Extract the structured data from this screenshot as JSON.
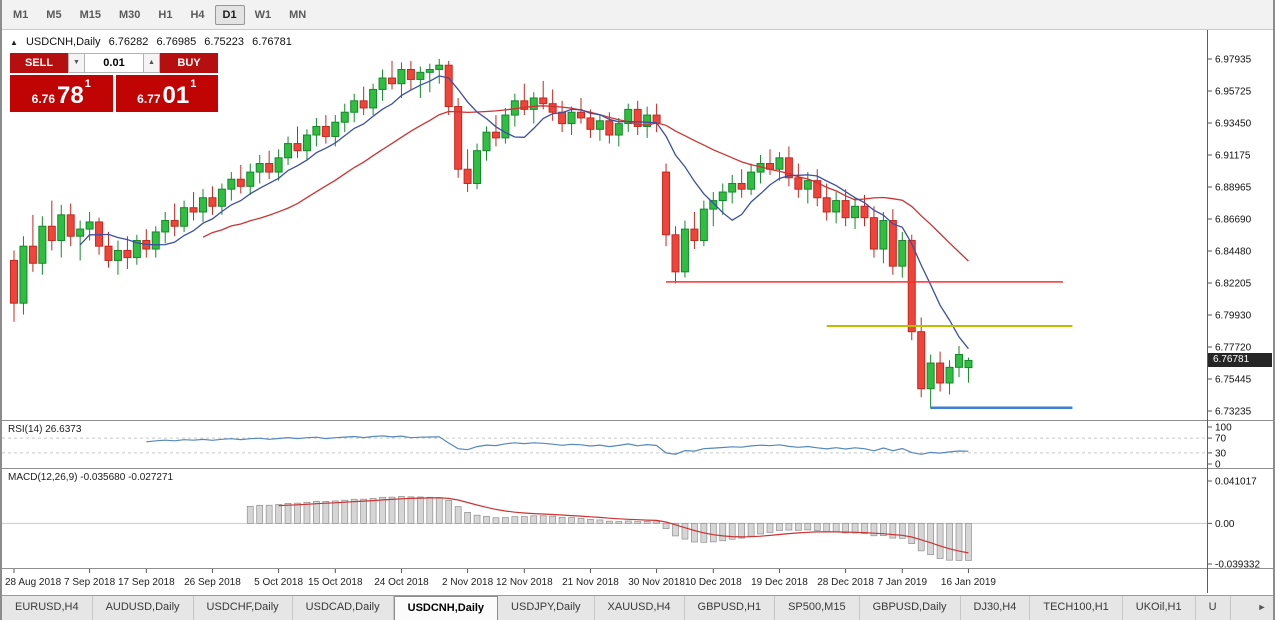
{
  "icons": {
    "panel_toggle": "▲",
    "volume_down": "▼",
    "volume_up": "▲",
    "tabs_scroll_right": "►"
  },
  "toolbar": {
    "timeframes": [
      {
        "label": "M1"
      },
      {
        "label": "M5"
      },
      {
        "label": "M15"
      },
      {
        "label": "M30"
      },
      {
        "label": "H1"
      },
      {
        "label": "H4"
      },
      {
        "label": "D1",
        "selected": true
      },
      {
        "label": "W1"
      },
      {
        "label": "MN"
      }
    ]
  },
  "chart": {
    "header": {
      "symbol": "USDCNH,Daily",
      "open": "6.76282",
      "high": "6.76985",
      "low": "6.75223",
      "close": "6.76781"
    },
    "trade_panel": {
      "sell_label": "SELL",
      "buy_label": "BUY",
      "volume": "0.01",
      "bid_small": "6.76",
      "bid_big": "78",
      "bid_sup": "1",
      "ask_small": "6.77",
      "ask_big": "01",
      "ask_sup": "1"
    },
    "price_badge": "6.76781"
  },
  "chart_data": {
    "type": "candlestick",
    "symbol": "USDCNH",
    "timeframe": "Daily",
    "start_date": "28 Aug 2018",
    "end_date": "16 Jan 2019",
    "y_ticks": [
      "6.97935",
      "6.95725",
      "6.93450",
      "6.91175",
      "6.88965",
      "6.86690",
      "6.84480",
      "6.82205",
      "6.79930",
      "6.77720",
      "6.75445",
      "6.73235"
    ],
    "x_ticks": [
      {
        "index": 0,
        "label": "28 Aug 2018"
      },
      {
        "index": 8,
        "label": "7 Sep 2018"
      },
      {
        "index": 14,
        "label": "17 Sep 2018"
      },
      {
        "index": 21,
        "label": "26 Sep 2018"
      },
      {
        "index": 28,
        "label": "5 Oct 2018"
      },
      {
        "index": 34,
        "label": "15 Oct 2018"
      },
      {
        "index": 41,
        "label": "24 Oct 2018"
      },
      {
        "index": 48,
        "label": "2 Nov 2018"
      },
      {
        "index": 54,
        "label": "12 Nov 2018"
      },
      {
        "index": 61,
        "label": "21 Nov 2018"
      },
      {
        "index": 68,
        "label": "30 Nov 2018"
      },
      {
        "index": 74,
        "label": "10 Dec 2018"
      },
      {
        "index": 81,
        "label": "19 Dec 2018"
      },
      {
        "index": 88,
        "label": "28 Dec 2018"
      },
      {
        "index": 94,
        "label": "7 Jan 2019"
      },
      {
        "index": 101,
        "label": "16 Jan 2019"
      }
    ],
    "ohlc": [
      [
        6.838,
        6.845,
        6.795,
        6.808
      ],
      [
        6.808,
        6.855,
        6.8,
        6.848
      ],
      [
        6.848,
        6.87,
        6.83,
        6.836
      ],
      [
        6.836,
        6.869,
        6.828,
        6.862
      ],
      [
        6.862,
        6.88,
        6.845,
        6.852
      ],
      [
        6.852,
        6.877,
        6.84,
        6.87
      ],
      [
        6.87,
        6.878,
        6.848,
        6.855
      ],
      [
        6.855,
        6.866,
        6.838,
        6.86
      ],
      [
        6.86,
        6.872,
        6.852,
        6.865
      ],
      [
        6.865,
        6.868,
        6.842,
        6.848
      ],
      [
        6.848,
        6.858,
        6.833,
        6.838
      ],
      [
        6.838,
        6.852,
        6.828,
        6.845
      ],
      [
        6.845,
        6.855,
        6.832,
        6.84
      ],
      [
        6.84,
        6.856,
        6.835,
        6.852
      ],
      [
        6.852,
        6.86,
        6.84,
        6.846
      ],
      [
        6.846,
        6.862,
        6.84,
        6.858
      ],
      [
        6.858,
        6.872,
        6.85,
        6.866
      ],
      [
        6.866,
        6.878,
        6.855,
        6.862
      ],
      [
        6.862,
        6.88,
        6.858,
        6.875
      ],
      [
        6.875,
        6.886,
        6.866,
        6.872
      ],
      [
        6.872,
        6.888,
        6.865,
        6.882
      ],
      [
        6.882,
        6.89,
        6.87,
        6.876
      ],
      [
        6.876,
        6.892,
        6.87,
        6.888
      ],
      [
        6.888,
        6.9,
        6.88,
        6.895
      ],
      [
        6.895,
        6.905,
        6.885,
        6.89
      ],
      [
        6.89,
        6.906,
        6.884,
        6.9
      ],
      [
        6.9,
        6.912,
        6.892,
        6.906
      ],
      [
        6.906,
        6.915,
        6.895,
        6.9
      ],
      [
        6.9,
        6.916,
        6.894,
        6.91
      ],
      [
        6.91,
        6.925,
        6.905,
        6.92
      ],
      [
        6.92,
        6.932,
        6.91,
        6.915
      ],
      [
        6.915,
        6.93,
        6.908,
        6.926
      ],
      [
        6.926,
        6.938,
        6.918,
        6.932
      ],
      [
        6.932,
        6.94,
        6.92,
        6.925
      ],
      [
        6.925,
        6.94,
        6.918,
        6.935
      ],
      [
        6.935,
        6.948,
        6.928,
        6.942
      ],
      [
        6.942,
        6.955,
        6.935,
        6.95
      ],
      [
        6.95,
        6.96,
        6.94,
        6.945
      ],
      [
        6.945,
        6.962,
        6.94,
        6.958
      ],
      [
        6.958,
        6.972,
        6.95,
        6.966
      ],
      [
        6.966,
        6.978,
        6.958,
        6.962
      ],
      [
        6.962,
        6.977,
        6.952,
        6.972
      ],
      [
        6.972,
        6.978,
        6.958,
        6.965
      ],
      [
        6.965,
        6.974,
        6.952,
        6.97
      ],
      [
        6.97,
        6.976,
        6.956,
        6.972
      ],
      [
        6.972,
        6.9794,
        6.962,
        6.975
      ],
      [
        6.975,
        6.978,
        6.94,
        6.946
      ],
      [
        6.946,
        6.952,
        6.896,
        6.902
      ],
      [
        6.902,
        6.916,
        6.886,
        6.892
      ],
      [
        6.892,
        6.92,
        6.888,
        6.915
      ],
      [
        6.915,
        6.932,
        6.908,
        6.928
      ],
      [
        6.928,
        6.94,
        6.918,
        6.924
      ],
      [
        6.924,
        6.945,
        6.92,
        6.94
      ],
      [
        6.94,
        6.955,
        6.932,
        6.95
      ],
      [
        6.95,
        6.962,
        6.94,
        6.944
      ],
      [
        6.944,
        6.956,
        6.934,
        6.952
      ],
      [
        6.952,
        6.964,
        6.944,
        6.948
      ],
      [
        6.948,
        6.958,
        6.936,
        6.942
      ],
      [
        6.942,
        6.95,
        6.928,
        6.934
      ],
      [
        6.934,
        6.946,
        6.926,
        6.942
      ],
      [
        6.942,
        6.952,
        6.934,
        6.938
      ],
      [
        6.938,
        6.944,
        6.924,
        6.93
      ],
      [
        6.93,
        6.94,
        6.922,
        6.936
      ],
      [
        6.936,
        6.942,
        6.92,
        6.926
      ],
      [
        6.926,
        6.938,
        6.918,
        6.934
      ],
      [
        6.934,
        6.948,
        6.928,
        6.944
      ],
      [
        6.944,
        6.95,
        6.926,
        6.932
      ],
      [
        6.932,
        6.946,
        6.924,
        6.94
      ],
      [
        6.94,
        6.948,
        6.928,
        6.934
      ],
      [
        6.9,
        6.906,
        6.848,
        6.856
      ],
      [
        6.856,
        6.862,
        6.822,
        6.83
      ],
      [
        6.83,
        6.866,
        6.826,
        6.86
      ],
      [
        6.86,
        6.872,
        6.846,
        6.852
      ],
      [
        6.852,
        6.88,
        6.848,
        6.874
      ],
      [
        6.874,
        6.886,
        6.862,
        6.88
      ],
      [
        6.88,
        6.892,
        6.87,
        6.886
      ],
      [
        6.886,
        6.898,
        6.878,
        6.892
      ],
      [
        6.892,
        6.902,
        6.882,
        6.888
      ],
      [
        6.888,
        6.906,
        6.884,
        6.9
      ],
      [
        6.9,
        6.912,
        6.892,
        6.906
      ],
      [
        6.906,
        6.916,
        6.898,
        6.902
      ],
      [
        6.902,
        6.914,
        6.894,
        6.91
      ],
      [
        6.91,
        6.918,
        6.89,
        6.896
      ],
      [
        6.896,
        6.906,
        6.882,
        6.888
      ],
      [
        6.888,
        6.9,
        6.878,
        6.894
      ],
      [
        6.894,
        6.902,
        6.876,
        6.882
      ],
      [
        6.882,
        6.892,
        6.866,
        6.872
      ],
      [
        6.872,
        6.886,
        6.864,
        6.88
      ],
      [
        6.88,
        6.888,
        6.862,
        6.868
      ],
      [
        6.868,
        6.882,
        6.86,
        6.876
      ],
      [
        6.876,
        6.884,
        6.862,
        6.868
      ],
      [
        6.868,
        6.876,
        6.84,
        6.846
      ],
      [
        6.846,
        6.872,
        6.836,
        6.866
      ],
      [
        6.866,
        6.874,
        6.828,
        6.834
      ],
      [
        6.834,
        6.858,
        6.826,
        6.852
      ],
      [
        6.852,
        6.856,
        6.782,
        6.788
      ],
      [
        6.788,
        6.798,
        6.742,
        6.748
      ],
      [
        6.748,
        6.772,
        6.734,
        6.766
      ],
      [
        6.766,
        6.774,
        6.746,
        6.752
      ],
      [
        6.752,
        6.768,
        6.744,
        6.763
      ],
      [
        6.763,
        6.778,
        6.756,
        6.772
      ],
      [
        6.76282,
        6.76985,
        6.75223,
        6.76781
      ]
    ],
    "indicators": {
      "ma_fast": {
        "period": 8,
        "color": "#3a4fa5"
      },
      "ma_slow": {
        "period": 21,
        "color": "#cc3333"
      },
      "rsi": {
        "period": 14,
        "label": "RSI(14) 26.6373",
        "color": "#5588bb",
        "levels": [
          {
            "v": 100,
            "label": "100"
          },
          {
            "v": 70,
            "label": "70"
          },
          {
            "v": 30,
            "label": "30"
          },
          {
            "v": 0,
            "label": "0"
          }
        ]
      },
      "macd": {
        "label": "MACD(12,26,9) -0.035680 -0.027271",
        "fast": 12,
        "slow": 26,
        "signal": 9,
        "y_ticks": [
          {
            "v": 0.041017,
            "label": "0.041017"
          },
          {
            "v": 0,
            "label": "0.00"
          },
          {
            "v": -0.039332,
            "label": "-0.039332"
          }
        ]
      }
    },
    "trendlines": [
      {
        "price": 6.823,
        "start_index": 69,
        "end_index": 111,
        "color": "#ff2e2e",
        "width": 1.5
      },
      {
        "price": 6.792,
        "start_index": 86,
        "end_index": 112,
        "color": "#bcbe00",
        "width": 2
      },
      {
        "price": 6.7346,
        "start_index": 97,
        "end_index": 112,
        "color": "#3f7fd2",
        "width": 2.5
      }
    ],
    "colors": {
      "up": "#2fbe41",
      "down": "#f0443b",
      "up_border": "#14882a",
      "down_border": "#c32820",
      "macd_hist_fill": "#d6d6d6",
      "macd_hist_stroke": "#8f8f8f",
      "macd_signal": "#cc3333"
    },
    "legend_position": "none",
    "grid": false
  },
  "tabbar": {
    "tabs": [
      {
        "label": "EURUSD,H4"
      },
      {
        "label": "AUDUSD,Daily"
      },
      {
        "label": "USDCHF,Daily"
      },
      {
        "label": "USDCAD,Daily"
      },
      {
        "label": "USDCNH,Daily",
        "active": true
      },
      {
        "label": "USDJPY,Daily"
      },
      {
        "label": "XAUUSD,H4"
      },
      {
        "label": "GBPUSD,H1"
      },
      {
        "label": "SP500,M15"
      },
      {
        "label": "GBPUSD,Daily"
      },
      {
        "label": "DJ30,H4"
      },
      {
        "label": "TECH100,H1"
      },
      {
        "label": "UKOil,H1"
      },
      {
        "label": "U"
      }
    ]
  }
}
